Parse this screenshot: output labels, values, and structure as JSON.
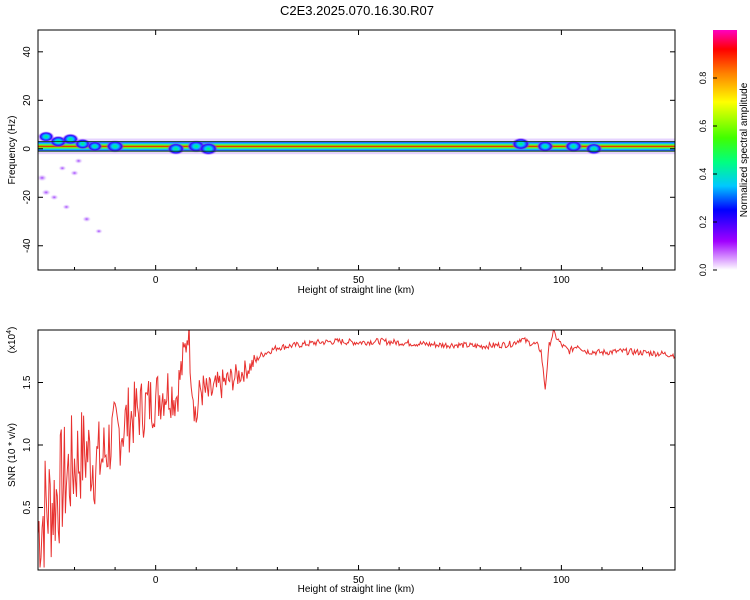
{
  "title": "C2E3.2025.070.16.30.R07",
  "colors": {
    "snr_line": "#e8312f",
    "frequency_band": "#ff0000",
    "frequency_low_amplitude": "#8a00ff"
  },
  "colorbar": {
    "label": "Normalized spectral amplitude",
    "ticks": [
      "0.0",
      "0.2",
      "0.4",
      "0.6",
      "0.8"
    ],
    "range": [
      0,
      1
    ]
  },
  "chart_data": [
    {
      "type": "heatmap",
      "xlabel": "Height of straight line (km)",
      "ylabel": "Frequency (Hz)",
      "xlim": [
        -29,
        128
      ],
      "ylim": [
        -50,
        49
      ],
      "xticks": [
        0,
        50,
        100
      ],
      "yticks": [
        -40,
        -20,
        0,
        20,
        40
      ],
      "band_center_frequency": 1,
      "band_half_width": 2,
      "band_x_start": -29,
      "band_x_end": 128,
      "hotspots": [
        {
          "x": -27,
          "y": 5,
          "amp": 0.35
        },
        {
          "x": -24,
          "y": 3,
          "amp": 0.45
        },
        {
          "x": -21,
          "y": 4,
          "amp": 0.4
        },
        {
          "x": -18,
          "y": 2,
          "amp": 0.35
        },
        {
          "x": -15,
          "y": 1,
          "amp": 0.3
        },
        {
          "x": -10,
          "y": 1,
          "amp": 0.55
        },
        {
          "x": 5,
          "y": 0,
          "amp": 0.5
        },
        {
          "x": 10,
          "y": 1,
          "amp": 0.55
        },
        {
          "x": 13,
          "y": 0,
          "amp": 0.6
        },
        {
          "x": 90,
          "y": 2,
          "amp": 0.55
        },
        {
          "x": 96,
          "y": 1,
          "amp": 0.45
        },
        {
          "x": 103,
          "y": 1,
          "amp": 0.5
        },
        {
          "x": 108,
          "y": 0,
          "amp": 0.45
        }
      ],
      "scatter_noise": [
        {
          "x": -28,
          "y": -12,
          "amp": 0.1
        },
        {
          "x": -27,
          "y": -18,
          "amp": 0.08
        },
        {
          "x": -25,
          "y": -20,
          "amp": 0.06
        },
        {
          "x": -22,
          "y": -24,
          "amp": 0.05
        },
        {
          "x": -20,
          "y": -10,
          "amp": 0.06
        },
        {
          "x": -17,
          "y": -29,
          "amp": 0.07
        },
        {
          "x": -14,
          "y": -34,
          "amp": 0.04
        },
        {
          "x": -23,
          "y": -8,
          "amp": 0.05
        },
        {
          "x": -19,
          "y": -5,
          "amp": 0.06
        }
      ]
    },
    {
      "type": "line",
      "xlabel": "Height of straight line (km)",
      "ylabel": "SNR (10 * v/v)",
      "multiplier_label": "(x10",
      "multiplier_exponent": "4",
      "xlim": [
        -29,
        128
      ],
      "ylim": [
        0,
        1.92
      ],
      "xticks": [
        0,
        50,
        100
      ],
      "yticks": [
        "0.5",
        "1.0",
        "1.5"
      ],
      "series": [
        {
          "x": [
            -29,
            -27,
            -25,
            -23,
            -21,
            -19,
            -17,
            -15,
            -13,
            -11,
            -9,
            -7,
            -5,
            -3,
            -1,
            1,
            3,
            5,
            7,
            8,
            9,
            10,
            11,
            13,
            15,
            17,
            20,
            23,
            26,
            30,
            35,
            40,
            45,
            50,
            55,
            60,
            65,
            70,
            75,
            80,
            85,
            88,
            90,
            92,
            94,
            95,
            96,
            97,
            98,
            100,
            102,
            104,
            106,
            110,
            115,
            120,
            125,
            128
          ],
          "y": [
            0.3,
            0.5,
            0.55,
            0.7,
            0.8,
            0.9,
            0.95,
            0.85,
            0.9,
            1.05,
            1.1,
            1.2,
            1.25,
            1.3,
            1.35,
            1.4,
            1.45,
            1.38,
            1.7,
            1.95,
            1.5,
            1.2,
            1.45,
            1.4,
            1.45,
            1.5,
            1.55,
            1.62,
            1.72,
            1.78,
            1.8,
            1.82,
            1.83,
            1.82,
            1.83,
            1.82,
            1.81,
            1.8,
            1.8,
            1.79,
            1.8,
            1.81,
            1.85,
            1.82,
            1.8,
            1.75,
            1.45,
            1.8,
            1.9,
            1.8,
            1.75,
            1.8,
            1.75,
            1.74,
            1.75,
            1.74,
            1.73,
            1.72
          ]
        }
      ]
    }
  ]
}
